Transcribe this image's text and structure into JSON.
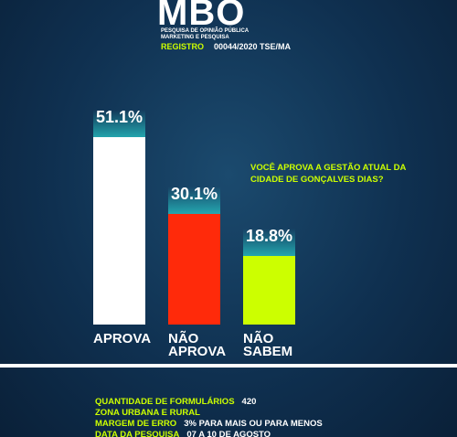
{
  "header": {
    "logo": "MBO",
    "subtitle": [
      "PESQUISA DE OPINIÃO PÚBLICA",
      "MARKETING E PESQUISA"
    ],
    "registro_label": "REGISTRO",
    "registro": "00044/2020 TSE/MA"
  },
  "chart_data": {
    "type": "bar",
    "question": "VOCÊ APROVA A GESTÃO ATUAL DA CIDADE DE GONÇALVES DIAS?",
    "categories": [
      "APROVA",
      "NÃO APROVA",
      "NÃO SABEM"
    ],
    "values": [
      51.1,
      30.1,
      18.8
    ],
    "value_labels": [
      "51.1%",
      "30.1%",
      "18.8%"
    ],
    "colors": [
      "#ffffff",
      "#ff2a0a",
      "#ccff00"
    ]
  },
  "footer": {
    "items": [
      {
        "label": "QUANTIDADE DE FORMULÁRIOS",
        "value": 420
      },
      {
        "label": "ZONA URBANA E RURAL"
      },
      {
        "label": "MARGEM DE ERRO",
        "value": "3% PARA MAIS OU PARA MENOS"
      },
      {
        "label": "DATA DA PESQUISA",
        "value": "07 A 10 DE AGOSTO"
      }
    ]
  }
}
